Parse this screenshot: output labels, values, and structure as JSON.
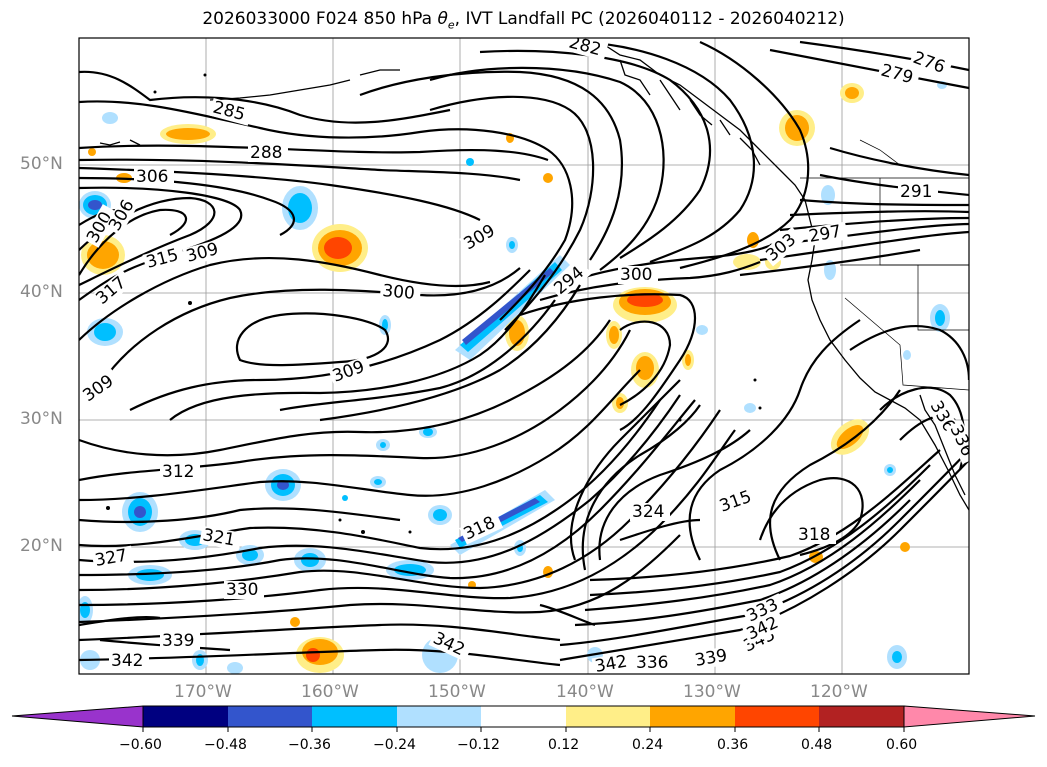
{
  "title": "2026033000 F024 850 hPa θe, IVT Landfall PC (2026040112 - 2026040212)",
  "title_parts": {
    "pre": "2026033000 F024 850 hPa ",
    "symbol": "θ",
    "sub": "e",
    "post": ", IVT Landfall PC (2026040112 - 2026040212)"
  },
  "lat_labels": [
    "50°N",
    "40°N",
    "30°N",
    "20°N"
  ],
  "lon_labels": [
    "170°W",
    "160°W",
    "150°W",
    "140°W",
    "130°W",
    "120°W"
  ],
  "contour_labels": [
    "282",
    "276",
    "279",
    "285",
    "288",
    "306",
    "300",
    "306",
    "315",
    "309",
    "317",
    "309",
    "300",
    "309",
    "294",
    "300",
    "291",
    "297",
    "303",
    "309",
    "312",
    "321",
    "327",
    "330",
    "318",
    "324",
    "315",
    "318",
    "339",
    "342",
    "342",
    "342",
    "336",
    "339",
    "345",
    "342",
    "333",
    "336",
    "336"
  ],
  "colorbar": {
    "colors": [
      "#9933cc",
      "#000080",
      "#3355cc",
      "#00bfff",
      "#b0e0ff",
      "#ffffff",
      "#ffee88",
      "#ffa500",
      "#ff4500",
      "#b22222",
      "#ff88aa"
    ],
    "ticks": [
      "−0.60",
      "−0.48",
      "−0.36",
      "−0.24",
      "−0.12",
      "0.12",
      "0.24",
      "0.36",
      "0.48",
      "0.60"
    ]
  }
}
